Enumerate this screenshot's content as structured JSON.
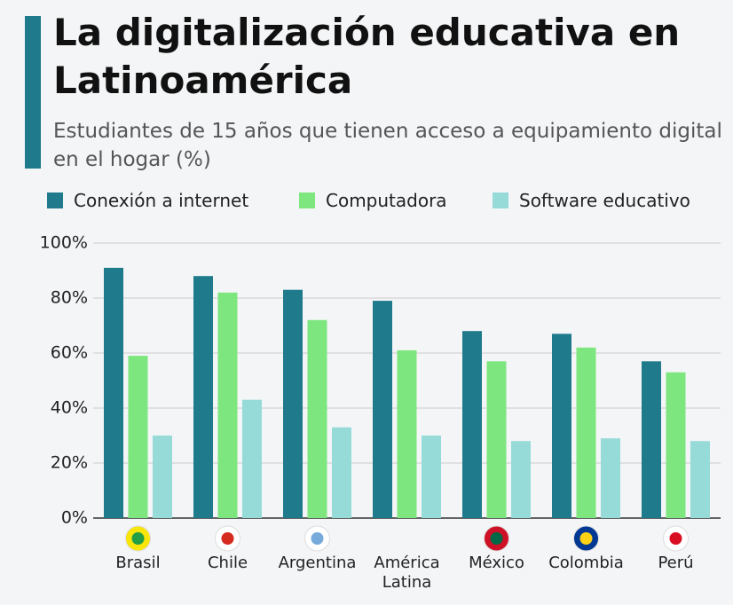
{
  "chart_data": {
    "type": "bar",
    "title": "La digitalización educativa en Latinoamérica",
    "subtitle": "Estudiantes de 15 años que tienen acceso a equipamiento digital en el hogar (%)",
    "categories": [
      "Brasil",
      "Chile",
      "Argentina",
      "América Latina",
      "México",
      "Colombia",
      "Perú"
    ],
    "series": [
      {
        "name": "Conexión a internet",
        "color": "#1f7a8c",
        "values": [
          91,
          88,
          83,
          79,
          68,
          67,
          57
        ]
      },
      {
        "name": "Computadora",
        "color": "#7ee67e",
        "values": [
          59,
          82,
          72,
          61,
          57,
          62,
          53
        ]
      },
      {
        "name": "Software educativo",
        "color": "#97dbd9",
        "values": [
          30,
          43,
          33,
          30,
          28,
          29,
          28
        ]
      }
    ],
    "ylim": [
      0,
      100
    ],
    "yticks": [
      {
        "value": 0,
        "label": "0%"
      },
      {
        "value": 20,
        "label": "20%"
      },
      {
        "value": 40,
        "label": "40%"
      },
      {
        "value": 60,
        "label": "60%"
      },
      {
        "value": 80,
        "label": "80%"
      },
      {
        "value": 100,
        "label": "100%"
      }
    ],
    "grid": true
  }
}
